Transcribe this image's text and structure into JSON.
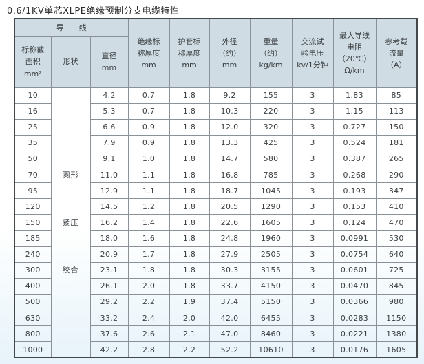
{
  "title": "0.6/1KV单芯XLPE绝缘预制分支电缆特性",
  "colors": {
    "header_bg": "#cfdce3",
    "outer_border": "#45484a",
    "grid_line": "#8a9197",
    "page_tint_bottom": "#e7f2fa",
    "text": "#3a3f42"
  },
  "table": {
    "group_header": "导　　线",
    "headers": {
      "area": "标称截\n面积\nmm²",
      "shape": "形状",
      "diameter": "直径\nmm",
      "insulation": "绝缘标\n称厚度\nmm",
      "sheath": "护套标\n称厚度\nmm",
      "outer_diameter": "外径\n（约）\nmm",
      "weight": "重量\n（约）\nkg/km",
      "test_voltage": "交流试\n验电压\nkv/1分钟",
      "resistance": "最大导线\n电阻\n（20℃）\nΩ/km",
      "ampacity": "参考载\n流量\n（A）"
    },
    "shape_labels": [
      "圆形",
      "紧压",
      "绞合"
    ],
    "row_fields": [
      "area",
      "diameter",
      "insulation",
      "sheath",
      "outer-diameter",
      "weight",
      "test-voltage",
      "resistance",
      "ampacity"
    ],
    "rows": [
      [
        "10",
        "4.2",
        "0.7",
        "1.8",
        "9.2",
        "155",
        "3",
        "1.83",
        "85"
      ],
      [
        "16",
        "5.3",
        "0.7",
        "1.8",
        "10.3",
        "220",
        "3",
        "1.15",
        "113"
      ],
      [
        "25",
        "6.6",
        "0.9",
        "1.8",
        "12.0",
        "320",
        "3",
        "0.727",
        "150"
      ],
      [
        "35",
        "7.9",
        "0.9",
        "1.8",
        "13.3",
        "425",
        "3",
        "0.524",
        "181"
      ],
      [
        "50",
        "9.1",
        "1.0",
        "1.8",
        "14.7",
        "580",
        "3",
        "0.387",
        "265"
      ],
      [
        "70",
        "11.0",
        "1.1",
        "1.8",
        "16.8",
        "785",
        "3",
        "0.268",
        "290"
      ],
      [
        "95",
        "12.9",
        "1.1",
        "1.8",
        "18.7",
        "1045",
        "3",
        "0.193",
        "347"
      ],
      [
        "120",
        "14.5",
        "1.2",
        "1.8",
        "20.5",
        "1290",
        "3",
        "0.153",
        "410"
      ],
      [
        "150",
        "16.2",
        "1.4",
        "1.8",
        "22.6",
        "1605",
        "3",
        "0.124",
        "470"
      ],
      [
        "185",
        "18.0",
        "1.6",
        "1.8",
        "24.8",
        "1960",
        "3",
        "0.0991",
        "530"
      ],
      [
        "240",
        "20.9",
        "1.7",
        "1.8",
        "27.9",
        "2505",
        "3",
        "0.0754",
        "640"
      ],
      [
        "300",
        "23.1",
        "1.8",
        "1.8",
        "30.3",
        "3155",
        "3",
        "0.0601",
        "725"
      ],
      [
        "400",
        "26.1",
        "2.0",
        "1.8",
        "33.7",
        "4150",
        "3",
        "0.0470",
        "845"
      ],
      [
        "500",
        "29.2",
        "2.2",
        "1.9",
        "37.4",
        "5150",
        "3",
        "0.0366",
        "980"
      ],
      [
        "630",
        "33.2",
        "2.4",
        "2.0",
        "42.0",
        "6455",
        "3",
        "0.0283",
        "1150"
      ],
      [
        "800",
        "37.6",
        "2.6",
        "2.1",
        "47.0",
        "8460",
        "3",
        "0.0221",
        "1380"
      ],
      [
        "1000",
        "42.2",
        "2.8",
        "2.2",
        "52.2",
        "10610",
        "3",
        "0.0176",
        "1605"
      ]
    ]
  }
}
